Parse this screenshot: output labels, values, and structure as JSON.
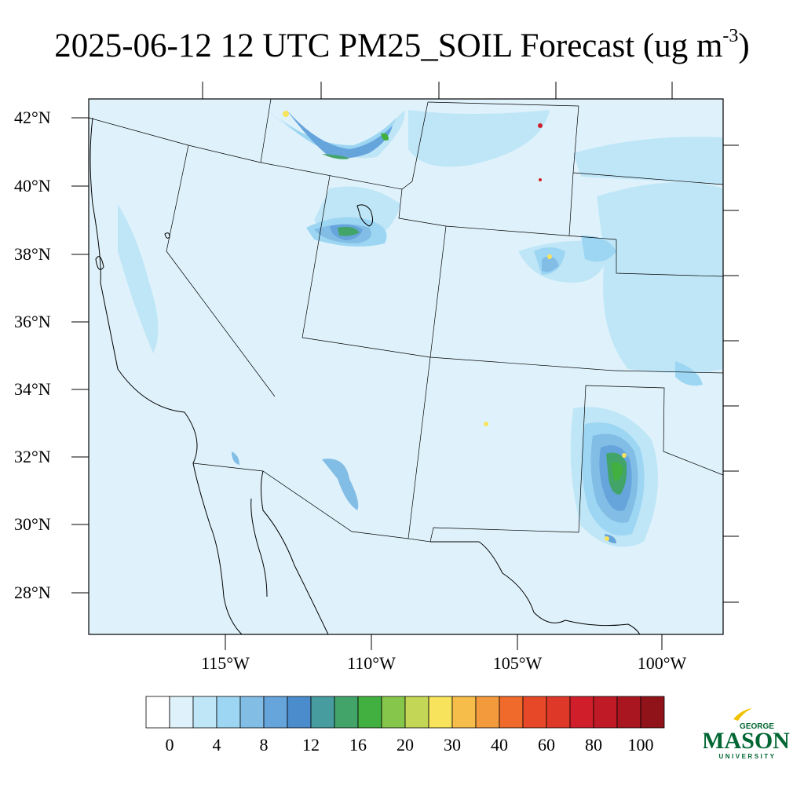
{
  "title": {
    "main": "2025-06-12 12 UTC PM25_SOIL Forecast (ug m",
    "sup": "-3",
    "close": ")"
  },
  "lat_ticks": [
    "42°N",
    "40°N",
    "38°N",
    "36°N",
    "34°N",
    "32°N",
    "30°N",
    "28°N"
  ],
  "lon_ticks": [
    "115°W",
    "110°W",
    "105°W",
    "100°W"
  ],
  "colorbar": {
    "labels": [
      "0",
      "4",
      "8",
      "12",
      "16",
      "20",
      "30",
      "40",
      "60",
      "80",
      "100"
    ],
    "colors": [
      "#ffffff",
      "#dff2fb",
      "#bfe6f7",
      "#9dd6f3",
      "#82bde6",
      "#66a4dc",
      "#4a8ccc",
      "#469c9e",
      "#43a46a",
      "#42b040",
      "#86c64b",
      "#c3d655",
      "#f7e45c",
      "#f6bd4a",
      "#f39a3c",
      "#f06a2c",
      "#e74828",
      "#de3829",
      "#d01f2a",
      "#bf1a25",
      "#aa1620",
      "#8f1319"
    ]
  },
  "logo": {
    "line1": "GEORGE",
    "line2": "MASON",
    "line3": "UNIVERSITY",
    "color": "#006633",
    "accent": "#f2c200"
  },
  "map": {
    "background_color": "#dff2fb",
    "region": "Southwestern United States and northern Mexico"
  }
}
